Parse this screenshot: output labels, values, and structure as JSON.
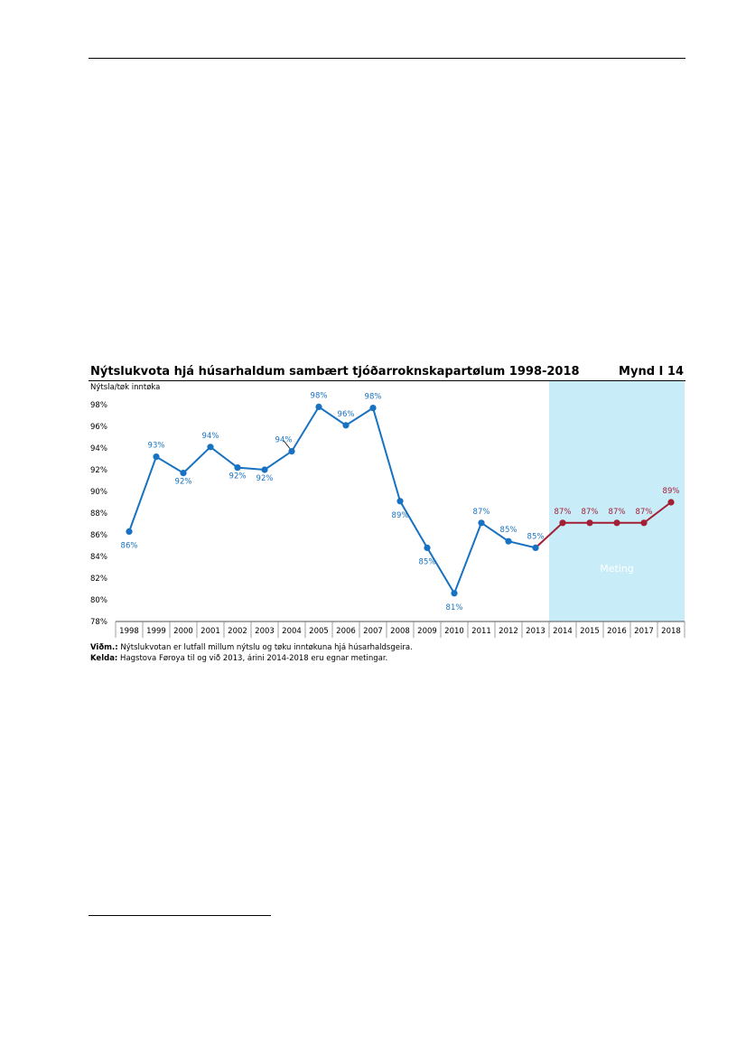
{
  "figure": {
    "title": "Nýtslukvota hjá húsarhaldum sambært tjóðarroknskapartølum 1998-2018",
    "number": "Mynd I 14",
    "note_label": "Viðm.:",
    "note_text": "Nýtslukvotan er lutfall millum nýtslu og tøku inntøkuna hjá húsarhaldsgeira.",
    "source_label": "Kelda:",
    "source_text": "Hagstova Føroya til og við 2013, árini 2014-2018 eru egnar metingar."
  },
  "chart_data": {
    "type": "line",
    "ylabel": "Nýtsla/tøk inntøka",
    "ylim": [
      78,
      99
    ],
    "yticks": [
      78,
      80,
      82,
      84,
      86,
      88,
      90,
      92,
      94,
      96,
      98
    ],
    "ytick_suffix": "%",
    "categories": [
      "1998",
      "1999",
      "2000",
      "2001",
      "2002",
      "2003",
      "2004",
      "2005",
      "2006",
      "2007",
      "2008",
      "2009",
      "2010",
      "2011",
      "2012",
      "2013",
      "2014",
      "2015",
      "2016",
      "2017",
      "2018"
    ],
    "values": [
      86.3,
      93.2,
      91.7,
      94.1,
      92.2,
      92.0,
      93.7,
      97.8,
      96.1,
      97.7,
      89.1,
      84.8,
      80.6,
      87.1,
      85.4,
      84.8,
      87.1,
      87.1,
      87.1,
      87.1,
      89.0
    ],
    "data_labels": [
      "86%",
      "93%",
      "92%",
      "94%",
      "92%",
      "92%",
      "94%",
      "98%",
      "96%",
      "98%",
      "89%",
      "85%",
      "81%",
      "87%",
      "85%",
      "85%",
      "87%",
      "87%",
      "87%",
      "87%",
      "89%"
    ],
    "historic_end_index": 15,
    "shaded_region": {
      "from": "2014",
      "to": "2018",
      "label": "Meting"
    },
    "colors": {
      "historic": "#1872c1",
      "forecast": "#a31f34",
      "shade": "#c8ecf8"
    },
    "grid": false
  }
}
